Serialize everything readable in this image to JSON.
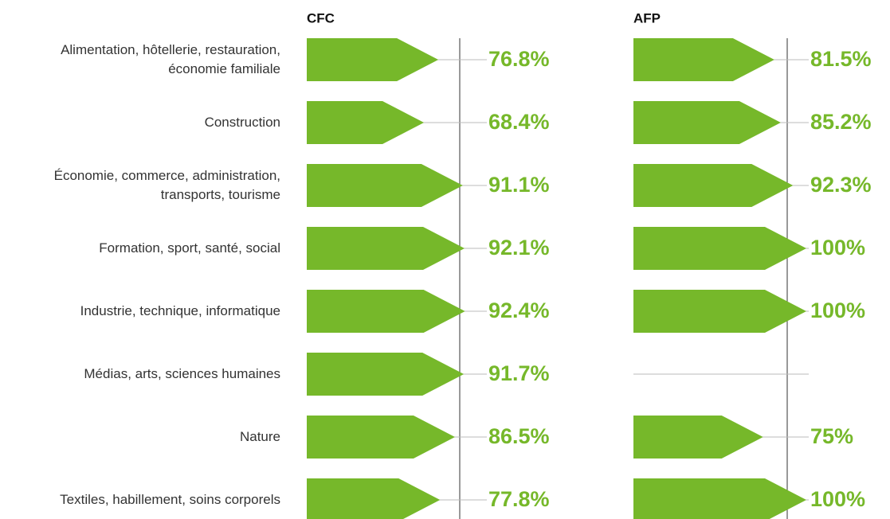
{
  "chart_data": {
    "type": "bar",
    "categories": [
      "Alimentation, hôtellerie, restauration, économie familiale",
      "Construction",
      "Économie, commerce, administration, transports, tourisme",
      "Formation, sport, santé, social",
      "Industrie, technique, informatique",
      "Médias, arts, sciences humaines",
      "Nature",
      "Textiles, habillement, soins corporels"
    ],
    "series": [
      {
        "name": "CFC",
        "color": "#76b82a",
        "values": [
          76.8,
          68.4,
          91.1,
          92.1,
          92.4,
          91.7,
          86.5,
          77.8
        ],
        "value_labels": [
          "76.8%",
          "68.4%",
          "91.1%",
          "92.1%",
          "92.4%",
          "91.7%",
          "86.5%",
          "77.8%"
        ]
      },
      {
        "name": "AFP",
        "color": "#76b82a",
        "values": [
          81.5,
          85.2,
          92.3,
          100,
          100,
          null,
          75,
          100
        ],
        "value_labels": [
          "81.5%",
          "85.2%",
          "92.3%",
          "100%",
          "100%",
          null,
          "75%",
          "100%"
        ]
      }
    ],
    "xlim": [
      0,
      100
    ]
  }
}
